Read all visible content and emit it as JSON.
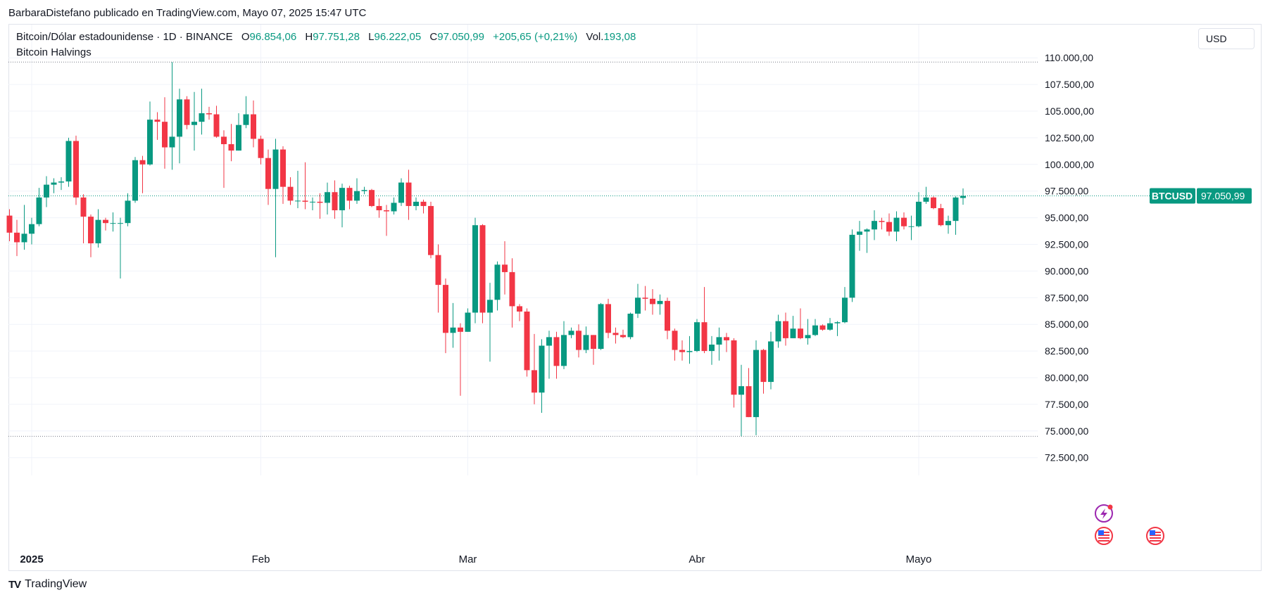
{
  "header": {
    "published": "BarbaraDistefano publicado en TradingView.com, Mayo 07, 2025 15:47 UTC"
  },
  "legend": {
    "symbol": "Bitcoin/Dólar estadounidense · 1D · BINANCE",
    "o_label": "O",
    "o_value": "96.854,06",
    "h_label": "H",
    "h_value": "97.751,28",
    "l_label": "L",
    "l_value": "96.222,05",
    "c_label": "C",
    "c_value": "97.050,99",
    "change": "+205,65 (+0,21%)",
    "vol_label": "Vol.",
    "vol_value": "193,08",
    "indicator": "Bitcoin Halvings"
  },
  "currency_button": "USD",
  "price_tag": {
    "symbol": "BTCUSD",
    "value": "97.050,99"
  },
  "footer": {
    "brand": "TradingView",
    "logo_text": "TV"
  },
  "colors": {
    "up": "#089981",
    "down": "#f23645",
    "grid": "#f0f3fa",
    "axis_text": "#131722"
  },
  "chart_data": {
    "type": "candlestick",
    "currency": "USD",
    "ylim": [
      71000,
      113000
    ],
    "y_ticks": [
      72500,
      75000,
      77500,
      80000,
      82500,
      85000,
      87500,
      90000,
      92500,
      95000,
      97500,
      100000,
      102500,
      105000,
      107500,
      110000
    ],
    "y_tick_labels": [
      "72.500,00",
      "75.000,00",
      "77.500,00",
      "80.000,00",
      "82.500,00",
      "85.000,00",
      "87.500,00",
      "90.000,00",
      "92.500,00",
      "95.000,00",
      "97.500,00",
      "100.000,00",
      "102.500,00",
      "105.000,00",
      "107.500,00",
      "110.000,00"
    ],
    "x_labels": [
      {
        "date": "2025-01-01",
        "label": "2025"
      },
      {
        "date": "2025-02-01",
        "label": "Feb"
      },
      {
        "date": "2025-03-01",
        "label": "Mar"
      },
      {
        "date": "2025-04-01",
        "label": "Abr"
      },
      {
        "date": "2025-05-01",
        "label": "Mayo"
      }
    ],
    "reference_lines": [
      109600,
      74500
    ],
    "last_price": 97050.99,
    "candles": [
      {
        "date": "2024-12-29",
        "o": 95200,
        "h": 95800,
        "l": 92800,
        "c": 93600
      },
      {
        "date": "2024-12-30",
        "o": 93600,
        "h": 94800,
        "l": 91400,
        "c": 92700
      },
      {
        "date": "2024-12-31",
        "o": 92700,
        "h": 96200,
        "l": 92000,
        "c": 93500
      },
      {
        "date": "2025-01-01",
        "o": 93500,
        "h": 95000,
        "l": 92500,
        "c": 94400
      },
      {
        "date": "2025-01-02",
        "o": 94400,
        "h": 97800,
        "l": 94200,
        "c": 96900
      },
      {
        "date": "2025-01-03",
        "o": 96900,
        "h": 98900,
        "l": 96000,
        "c": 98100
      },
      {
        "date": "2025-01-04",
        "o": 98100,
        "h": 98700,
        "l": 97300,
        "c": 98300
      },
      {
        "date": "2025-01-05",
        "o": 98300,
        "h": 98800,
        "l": 97600,
        "c": 98400
      },
      {
        "date": "2025-01-06",
        "o": 98400,
        "h": 102500,
        "l": 97900,
        "c": 102200
      },
      {
        "date": "2025-01-07",
        "o": 102200,
        "h": 102700,
        "l": 96200,
        "c": 96900
      },
      {
        "date": "2025-01-08",
        "o": 96900,
        "h": 97200,
        "l": 92600,
        "c": 95100
      },
      {
        "date": "2025-01-09",
        "o": 95100,
        "h": 95300,
        "l": 91300,
        "c": 92600
      },
      {
        "date": "2025-01-10",
        "o": 92600,
        "h": 95800,
        "l": 92200,
        "c": 94800
      },
      {
        "date": "2025-01-11",
        "o": 94800,
        "h": 95000,
        "l": 93800,
        "c": 94500
      },
      {
        "date": "2025-01-12",
        "o": 94500,
        "h": 95500,
        "l": 93700,
        "c": 94500
      },
      {
        "date": "2025-01-13",
        "o": 94500,
        "h": 95000,
        "l": 89300,
        "c": 94500
      },
      {
        "date": "2025-01-14",
        "o": 94500,
        "h": 97300,
        "l": 94200,
        "c": 96600
      },
      {
        "date": "2025-01-15",
        "o": 96600,
        "h": 100700,
        "l": 96400,
        "c": 100400
      },
      {
        "date": "2025-01-16",
        "o": 100400,
        "h": 100800,
        "l": 97300,
        "c": 100000
      },
      {
        "date": "2025-01-17",
        "o": 100000,
        "h": 105900,
        "l": 99900,
        "c": 104200
      },
      {
        "date": "2025-01-18",
        "o": 104200,
        "h": 104900,
        "l": 102300,
        "c": 104000
      },
      {
        "date": "2025-01-19",
        "o": 104000,
        "h": 106300,
        "l": 99600,
        "c": 101600
      },
      {
        "date": "2025-01-20",
        "o": 101600,
        "h": 109600,
        "l": 99500,
        "c": 102600
      },
      {
        "date": "2025-01-21",
        "o": 102600,
        "h": 107100,
        "l": 100100,
        "c": 106100
      },
      {
        "date": "2025-01-22",
        "o": 106100,
        "h": 106400,
        "l": 103300,
        "c": 103700
      },
      {
        "date": "2025-01-23",
        "o": 103700,
        "h": 106800,
        "l": 101300,
        "c": 104000
      },
      {
        "date": "2025-01-24",
        "o": 104000,
        "h": 107100,
        "l": 102800,
        "c": 104800
      },
      {
        "date": "2025-01-25",
        "o": 104800,
        "h": 105400,
        "l": 104200,
        "c": 104700
      },
      {
        "date": "2025-01-26",
        "o": 104700,
        "h": 105500,
        "l": 102500,
        "c": 102600
      },
      {
        "date": "2025-01-27",
        "o": 102600,
        "h": 103200,
        "l": 97800,
        "c": 101900
      },
      {
        "date": "2025-01-28",
        "o": 101900,
        "h": 103800,
        "l": 100300,
        "c": 101300
      },
      {
        "date": "2025-01-29",
        "o": 101300,
        "h": 104800,
        "l": 101300,
        "c": 103700
      },
      {
        "date": "2025-01-30",
        "o": 103700,
        "h": 106400,
        "l": 103400,
        "c": 104700
      },
      {
        "date": "2025-01-31",
        "o": 104700,
        "h": 106000,
        "l": 101600,
        "c": 102400
      },
      {
        "date": "2025-02-01",
        "o": 102400,
        "h": 102700,
        "l": 100000,
        "c": 100600
      },
      {
        "date": "2025-02-02",
        "o": 100600,
        "h": 101400,
        "l": 96200,
        "c": 97700
      },
      {
        "date": "2025-02-03",
        "o": 97700,
        "h": 102400,
        "l": 91300,
        "c": 101400
      },
      {
        "date": "2025-02-04",
        "o": 101400,
        "h": 101700,
        "l": 96300,
        "c": 97900
      },
      {
        "date": "2025-02-05",
        "o": 97900,
        "h": 98800,
        "l": 96200,
        "c": 96600
      },
      {
        "date": "2025-02-06",
        "o": 96600,
        "h": 99400,
        "l": 95900,
        "c": 96600
      },
      {
        "date": "2025-02-07",
        "o": 96600,
        "h": 100200,
        "l": 95800,
        "c": 96500
      },
      {
        "date": "2025-02-08",
        "o": 96500,
        "h": 96900,
        "l": 95700,
        "c": 96500
      },
      {
        "date": "2025-02-09",
        "o": 96500,
        "h": 97300,
        "l": 94900,
        "c": 96400
      },
      {
        "date": "2025-02-10",
        "o": 96400,
        "h": 98300,
        "l": 95300,
        "c": 97400
      },
      {
        "date": "2025-02-11",
        "o": 97400,
        "h": 98500,
        "l": 94900,
        "c": 95700
      },
      {
        "date": "2025-02-12",
        "o": 95700,
        "h": 98200,
        "l": 94100,
        "c": 97800
      },
      {
        "date": "2025-02-13",
        "o": 97800,
        "h": 98000,
        "l": 95800,
        "c": 96600
      },
      {
        "date": "2025-02-14",
        "o": 96600,
        "h": 98700,
        "l": 96300,
        "c": 97500
      },
      {
        "date": "2025-02-15",
        "o": 97500,
        "h": 97900,
        "l": 97200,
        "c": 97600
      },
      {
        "date": "2025-02-16",
        "o": 97600,
        "h": 97700,
        "l": 96000,
        "c": 96100
      },
      {
        "date": "2025-02-17",
        "o": 96100,
        "h": 96800,
        "l": 95000,
        "c": 95700
      },
      {
        "date": "2025-02-18",
        "o": 95700,
        "h": 96200,
        "l": 93300,
        "c": 95600
      },
      {
        "date": "2025-02-19",
        "o": 95600,
        "h": 96900,
        "l": 95300,
        "c": 96400
      },
      {
        "date": "2025-02-20",
        "o": 96400,
        "h": 98700,
        "l": 96100,
        "c": 98300
      },
      {
        "date": "2025-02-21",
        "o": 98300,
        "h": 99500,
        "l": 94800,
        "c": 96100
      },
      {
        "date": "2025-02-22",
        "o": 96100,
        "h": 96900,
        "l": 95700,
        "c": 96500
      },
      {
        "date": "2025-02-23",
        "o": 96500,
        "h": 96700,
        "l": 95400,
        "c": 96100
      },
      {
        "date": "2025-02-24",
        "o": 96100,
        "h": 96500,
        "l": 91200,
        "c": 91500
      },
      {
        "date": "2025-02-25",
        "o": 91500,
        "h": 92500,
        "l": 86100,
        "c": 88700
      },
      {
        "date": "2025-02-26",
        "o": 88700,
        "h": 89300,
        "l": 82300,
        "c": 84200
      },
      {
        "date": "2025-02-27",
        "o": 84200,
        "h": 87000,
        "l": 82800,
        "c": 84700
      },
      {
        "date": "2025-02-28",
        "o": 84700,
        "h": 85100,
        "l": 78300,
        "c": 84300
      },
      {
        "date": "2025-03-01",
        "o": 84300,
        "h": 86500,
        "l": 84300,
        "c": 86100
      },
      {
        "date": "2025-03-02",
        "o": 86100,
        "h": 95000,
        "l": 85100,
        "c": 94300
      },
      {
        "date": "2025-03-03",
        "o": 94300,
        "h": 94400,
        "l": 85100,
        "c": 86100
      },
      {
        "date": "2025-03-04",
        "o": 86100,
        "h": 88900,
        "l": 81500,
        "c": 87300
      },
      {
        "date": "2025-03-05",
        "o": 87300,
        "h": 90900,
        "l": 86300,
        "c": 90600
      },
      {
        "date": "2025-03-06",
        "o": 90600,
        "h": 92800,
        "l": 87800,
        "c": 89900
      },
      {
        "date": "2025-03-07",
        "o": 89900,
        "h": 91200,
        "l": 84700,
        "c": 86700
      },
      {
        "date": "2025-03-08",
        "o": 86700,
        "h": 86900,
        "l": 85300,
        "c": 86200
      },
      {
        "date": "2025-03-09",
        "o": 86200,
        "h": 86500,
        "l": 80100,
        "c": 80700
      },
      {
        "date": "2025-03-10",
        "o": 80700,
        "h": 84100,
        "l": 77500,
        "c": 78600
      },
      {
        "date": "2025-03-11",
        "o": 78600,
        "h": 83600,
        "l": 76700,
        "c": 83000
      },
      {
        "date": "2025-03-12",
        "o": 83000,
        "h": 84400,
        "l": 79900,
        "c": 83800
      },
      {
        "date": "2025-03-13",
        "o": 83800,
        "h": 84300,
        "l": 79900,
        "c": 81100
      },
      {
        "date": "2025-03-14",
        "o": 81100,
        "h": 85300,
        "l": 80800,
        "c": 84000
      },
      {
        "date": "2025-03-15",
        "o": 84000,
        "h": 84700,
        "l": 83700,
        "c": 84400
      },
      {
        "date": "2025-03-16",
        "o": 84400,
        "h": 85000,
        "l": 81900,
        "c": 82600
      },
      {
        "date": "2025-03-17",
        "o": 82600,
        "h": 84800,
        "l": 82300,
        "c": 84000
      },
      {
        "date": "2025-03-18",
        "o": 84000,
        "h": 84000,
        "l": 81200,
        "c": 82700
      },
      {
        "date": "2025-03-19",
        "o": 82700,
        "h": 87000,
        "l": 82600,
        "c": 86900
      },
      {
        "date": "2025-03-20",
        "o": 86900,
        "h": 87400,
        "l": 83700,
        "c": 84200
      },
      {
        "date": "2025-03-21",
        "o": 84200,
        "h": 84700,
        "l": 83200,
        "c": 84000
      },
      {
        "date": "2025-03-22",
        "o": 84000,
        "h": 84500,
        "l": 83700,
        "c": 83800
      },
      {
        "date": "2025-03-23",
        "o": 83800,
        "h": 86100,
        "l": 83600,
        "c": 86000
      },
      {
        "date": "2025-03-24",
        "o": 86000,
        "h": 88800,
        "l": 85600,
        "c": 87500
      },
      {
        "date": "2025-03-25",
        "o": 87500,
        "h": 88600,
        "l": 86300,
        "c": 87400
      },
      {
        "date": "2025-03-26",
        "o": 87400,
        "h": 88300,
        "l": 85900,
        "c": 86900
      },
      {
        "date": "2025-03-27",
        "o": 86900,
        "h": 87800,
        "l": 85900,
        "c": 87200
      },
      {
        "date": "2025-03-28",
        "o": 87200,
        "h": 87500,
        "l": 83600,
        "c": 84400
      },
      {
        "date": "2025-03-29",
        "o": 84400,
        "h": 84600,
        "l": 81600,
        "c": 82600
      },
      {
        "date": "2025-03-30",
        "o": 82600,
        "h": 83500,
        "l": 81600,
        "c": 82400
      },
      {
        "date": "2025-03-31",
        "o": 82400,
        "h": 83900,
        "l": 81300,
        "c": 82500
      },
      {
        "date": "2025-04-01",
        "o": 82500,
        "h": 85500,
        "l": 82400,
        "c": 85200
      },
      {
        "date": "2025-04-02",
        "o": 85200,
        "h": 88500,
        "l": 82300,
        "c": 82500
      },
      {
        "date": "2025-04-03",
        "o": 82500,
        "h": 83900,
        "l": 81200,
        "c": 83100
      },
      {
        "date": "2025-04-04",
        "o": 83100,
        "h": 84700,
        "l": 81600,
        "c": 83800
      },
      {
        "date": "2025-04-05",
        "o": 83800,
        "h": 84200,
        "l": 82400,
        "c": 83500
      },
      {
        "date": "2025-04-06",
        "o": 83500,
        "h": 83700,
        "l": 77200,
        "c": 78400
      },
      {
        "date": "2025-04-07",
        "o": 78400,
        "h": 81200,
        "l": 74500,
        "c": 79200
      },
      {
        "date": "2025-04-08",
        "o": 79200,
        "h": 80900,
        "l": 76300,
        "c": 76300
      },
      {
        "date": "2025-04-09",
        "o": 76300,
        "h": 83500,
        "l": 74600,
        "c": 82600
      },
      {
        "date": "2025-04-10",
        "o": 82600,
        "h": 82700,
        "l": 78500,
        "c": 79600
      },
      {
        "date": "2025-04-11",
        "o": 79600,
        "h": 84300,
        "l": 78900,
        "c": 83400
      },
      {
        "date": "2025-04-12",
        "o": 83400,
        "h": 85900,
        "l": 82800,
        "c": 85300
      },
      {
        "date": "2025-04-13",
        "o": 85300,
        "h": 86100,
        "l": 83000,
        "c": 83700
      },
      {
        "date": "2025-04-14",
        "o": 83700,
        "h": 85800,
        "l": 83700,
        "c": 84600
      },
      {
        "date": "2025-04-15",
        "o": 84600,
        "h": 86500,
        "l": 83600,
        "c": 83700
      },
      {
        "date": "2025-04-16",
        "o": 83700,
        "h": 85500,
        "l": 83100,
        "c": 84000
      },
      {
        "date": "2025-04-17",
        "o": 84000,
        "h": 85500,
        "l": 83900,
        "c": 84900
      },
      {
        "date": "2025-04-18",
        "o": 84900,
        "h": 85000,
        "l": 84400,
        "c": 84500
      },
      {
        "date": "2025-04-19",
        "o": 84500,
        "h": 85600,
        "l": 84400,
        "c": 85100
      },
      {
        "date": "2025-04-20",
        "o": 85100,
        "h": 85300,
        "l": 83900,
        "c": 85200
      },
      {
        "date": "2025-04-21",
        "o": 85200,
        "h": 88500,
        "l": 85100,
        "c": 87500
      },
      {
        "date": "2025-04-22",
        "o": 87500,
        "h": 93900,
        "l": 87100,
        "c": 93400
      },
      {
        "date": "2025-04-23",
        "o": 93400,
        "h": 94700,
        "l": 91900,
        "c": 93700
      },
      {
        "date": "2025-04-24",
        "o": 93700,
        "h": 94000,
        "l": 91700,
        "c": 93900
      },
      {
        "date": "2025-04-25",
        "o": 93900,
        "h": 95700,
        "l": 92900,
        "c": 94700
      },
      {
        "date": "2025-04-26",
        "o": 94700,
        "h": 95000,
        "l": 93900,
        "c": 94600
      },
      {
        "date": "2025-04-27",
        "o": 94600,
        "h": 95400,
        "l": 93300,
        "c": 93700
      },
      {
        "date": "2025-04-28",
        "o": 93700,
        "h": 95600,
        "l": 92800,
        "c": 95000
      },
      {
        "date": "2025-04-29",
        "o": 95000,
        "h": 95500,
        "l": 93900,
        "c": 94200
      },
      {
        "date": "2025-04-30",
        "o": 94200,
        "h": 95200,
        "l": 92900,
        "c": 94200
      },
      {
        "date": "2025-05-01",
        "o": 94200,
        "h": 97400,
        "l": 94100,
        "c": 96500
      },
      {
        "date": "2025-05-02",
        "o": 96500,
        "h": 97900,
        "l": 96300,
        "c": 96900
      },
      {
        "date": "2025-05-03",
        "o": 96900,
        "h": 97000,
        "l": 95800,
        "c": 95900
      },
      {
        "date": "2025-05-04",
        "o": 95900,
        "h": 96300,
        "l": 94200,
        "c": 94300
      },
      {
        "date": "2025-05-05",
        "o": 94300,
        "h": 95200,
        "l": 93500,
        "c": 94700
      },
      {
        "date": "2025-05-06",
        "o": 94700,
        "h": 97000,
        "l": 93400,
        "c": 96900
      },
      {
        "date": "2025-05-07",
        "o": 96854.06,
        "h": 97751.28,
        "l": 96222.05,
        "c": 97050.99
      }
    ]
  }
}
